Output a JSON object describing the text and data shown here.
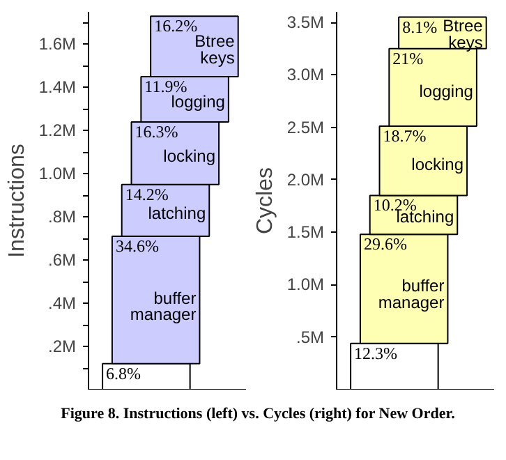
{
  "chart_data": [
    {
      "type": "bar",
      "stacked": true,
      "categories": [
        null
      ],
      "ylabel": "Instructions",
      "ylim": [
        0,
        1.75
      ],
      "yticks": [
        {
          "value": 0.1,
          "label": null
        },
        {
          "value": 0.2,
          "label": ".2M"
        },
        {
          "value": 0.3,
          "label": null
        },
        {
          "value": 0.4,
          "label": ".4M"
        },
        {
          "value": 0.5,
          "label": null
        },
        {
          "value": 0.6,
          "label": ".6M"
        },
        {
          "value": 0.7,
          "label": null
        },
        {
          "value": 0.8,
          "label": ".8M"
        },
        {
          "value": 0.9,
          "label": null
        },
        {
          "value": 1.0,
          "label": "1.0M"
        },
        {
          "value": 1.1,
          "label": null
        },
        {
          "value": 1.2,
          "label": "1.2M"
        },
        {
          "value": 1.3,
          "label": null
        },
        {
          "value": 1.4,
          "label": "1.4M"
        },
        {
          "value": 1.5,
          "label": null
        },
        {
          "value": 1.6,
          "label": "1.6M"
        },
        {
          "value": 1.7,
          "label": null
        }
      ],
      "series": [
        {
          "color": "#ffffff",
          "values": [
            0.12
          ]
        },
        {
          "name": "buffer manager",
          "color": "#ccccff",
          "values": [
            0.59
          ]
        },
        {
          "name": "latching",
          "color": "#ccccff",
          "values": [
            0.24
          ]
        },
        {
          "name": "locking",
          "color": "#ccccff",
          "values": [
            0.29
          ]
        },
        {
          "name": "logging",
          "color": "#ccccff",
          "values": [
            0.21
          ]
        },
        {
          "name": "Btree keys",
          "color": "#ccccff",
          "values": [
            0.28
          ]
        }
      ],
      "annotations": [
        {
          "text": "6.8%",
          "y": 0.12
        },
        {
          "text": "34.6%",
          "y": 0.71
        },
        {
          "text": "14.2%",
          "y": 0.95
        },
        {
          "text": "16.3%",
          "y": 1.24
        },
        {
          "text": "11.9%",
          "y": 1.45
        },
        {
          "text": "16.2%",
          "y": 1.73
        },
        "Figure 8. Instructions (left) vs. Cycles (right) for New Order."
      ]
    },
    {
      "type": "bar",
      "stacked": true,
      "categories": [
        null
      ],
      "ylabel": "Cycles",
      "ylim": [
        0,
        3.6
      ],
      "yticks": [
        {
          "value": 0.5,
          "label": ".5M"
        },
        {
          "value": 1.0,
          "label": "1.0M"
        },
        {
          "value": 1.5,
          "label": "1.5M"
        },
        {
          "value": 2.0,
          "label": "2.0M"
        },
        {
          "value": 2.5,
          "label": "2.5M"
        },
        {
          "value": 3.0,
          "label": "3.0M"
        },
        {
          "value": 3.5,
          "label": "3.5M"
        }
      ],
      "series": [
        {
          "color": "#ffffff",
          "values": [
            0.44
          ]
        },
        {
          "name": "buffer manager",
          "color": "#ffffb4",
          "values": [
            1.04
          ]
        },
        {
          "name": "latching",
          "color": "#ffffb4",
          "values": [
            0.37
          ]
        },
        {
          "name": "locking",
          "color": "#ffffb4",
          "values": [
            0.66
          ]
        },
        {
          "name": "logging",
          "color": "#ffffb4",
          "values": [
            0.74
          ]
        },
        {
          "name": "Btree keys",
          "color": "#ffffb4",
          "values": [
            0.3
          ]
        }
      ],
      "annotations": [
        {
          "text": "12.3%",
          "y": 0.44
        },
        {
          "text": "29.6%",
          "y": 1.48
        },
        {
          "text": "10.2%",
          "y": 1.85
        },
        {
          "text": "18.7%",
          "y": 2.51
        },
        {
          "text": "21%",
          "y": 3.25
        },
        {
          "text": "8.1%",
          "y": 3.55
        }
      ]
    }
  ]
}
